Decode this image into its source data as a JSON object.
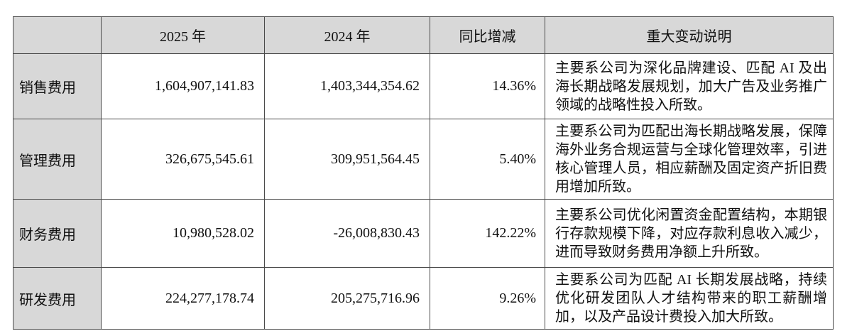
{
  "colors": {
    "header_bg": "#d8d8d8",
    "border": "#4a4a4a",
    "text": "#111111"
  },
  "table": {
    "headers": {
      "item": "",
      "y2025": "2025 年",
      "y2024": "2024 年",
      "change": "同比增减",
      "note": "重大变动说明"
    },
    "rows": [
      {
        "label": "销售费用",
        "y2025": "1,604,907,141.83",
        "y2024": "1,403,344,354.62",
        "change": "14.36%",
        "note": "主要系公司为深化品牌建设、匹配 AI 及出海长期战略发展规划，加大广告及业务推广领域的战略性投入所致。"
      },
      {
        "label": "管理费用",
        "y2025": "326,675,545.61",
        "y2024": "309,951,564.45",
        "change": "5.40%",
        "note": "主要系公司为匹配出海长期战略发展，保障海外业务合规运营与全球化管理效率，引进核心管理人员，相应薪酬及固定资产折旧费用增加所致。"
      },
      {
        "label": "财务费用",
        "y2025": "10,980,528.02",
        "y2024": "-26,008,830.43",
        "change": "142.22%",
        "note": "主要系公司优化闲置资金配置结构，本期银行存款规模下降，对应存款利息收入减少，进而导致财务费用净额上升所致。"
      },
      {
        "label": "研发费用",
        "y2025": "224,277,178.74",
        "y2024": "205,275,716.96",
        "change": "9.26%",
        "note": "主要系公司为匹配 AI 长期发展战略，持续优化研发团队人才结构带来的职工薪酬增加，以及产品设计费投入加大所致。"
      }
    ]
  }
}
